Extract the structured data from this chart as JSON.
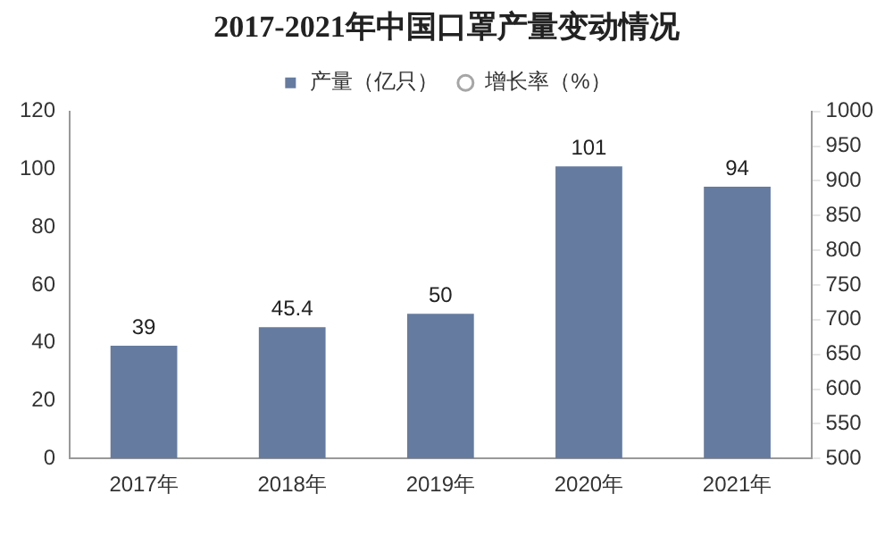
{
  "chart_data": {
    "type": "bar",
    "title": "2017-2021年中国口罩产量变动情况",
    "categories": [
      "2017年",
      "2018年",
      "2019年",
      "2020年",
      "2021年"
    ],
    "series": [
      {
        "name": "产量（亿只）",
        "color": "#657ba0",
        "values": [
          39,
          45.4,
          50,
          101,
          94
        ]
      },
      {
        "name": "增长率（%）",
        "type": "line",
        "color": "#a6a6a6",
        "marker": "circle",
        "values": [
          null,
          null,
          null,
          null,
          null
        ]
      }
    ],
    "ylim": [
      0,
      120
    ],
    "yticks": [
      0,
      20,
      40,
      60,
      80,
      100,
      120
    ],
    "y2lim": [
      500,
      1000
    ],
    "y2ticks": [
      500,
      550,
      600,
      650,
      700,
      750,
      800,
      850,
      900,
      950,
      1000
    ],
    "data_labels": true,
    "legend": "top",
    "grid": false
  }
}
